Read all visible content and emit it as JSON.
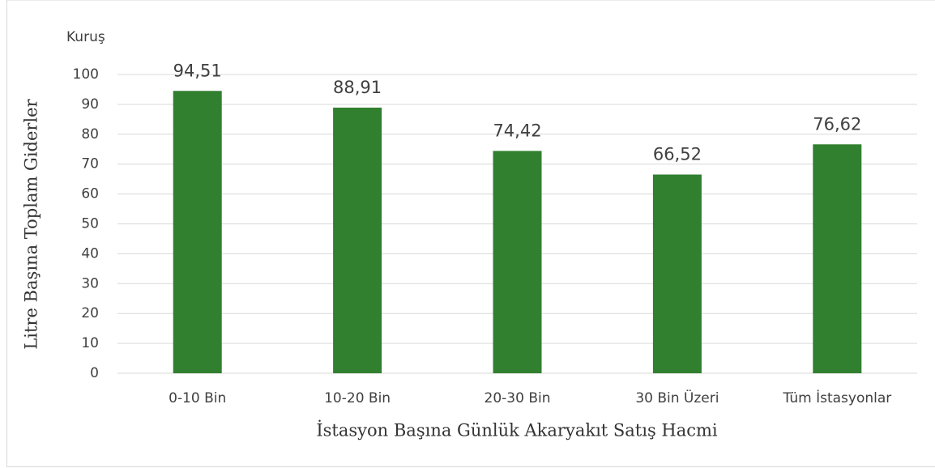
{
  "chart_data": {
    "type": "bar",
    "unit_label": "Kuruş",
    "y_axis_label": "Litre Başına Toplam Giderler",
    "x_axis_label": "İstasyon Başına Günlük Akaryakıt Satış Hacmi",
    "categories": [
      "0-10 Bin",
      "10-20 Bin",
      "20-30 Bin",
      "30 Bin Üzeri",
      "Tüm İstasyonlar"
    ],
    "values": [
      94.51,
      88.91,
      74.42,
      66.52,
      76.62
    ],
    "value_labels": [
      "94,51",
      "88,91",
      "74,42",
      "66,52",
      "76,62"
    ],
    "color": "#31802f",
    "ylim": [
      0,
      100
    ],
    "yticks": [
      0,
      10,
      20,
      30,
      40,
      50,
      60,
      70,
      80,
      90,
      100
    ],
    "grid": true
  }
}
